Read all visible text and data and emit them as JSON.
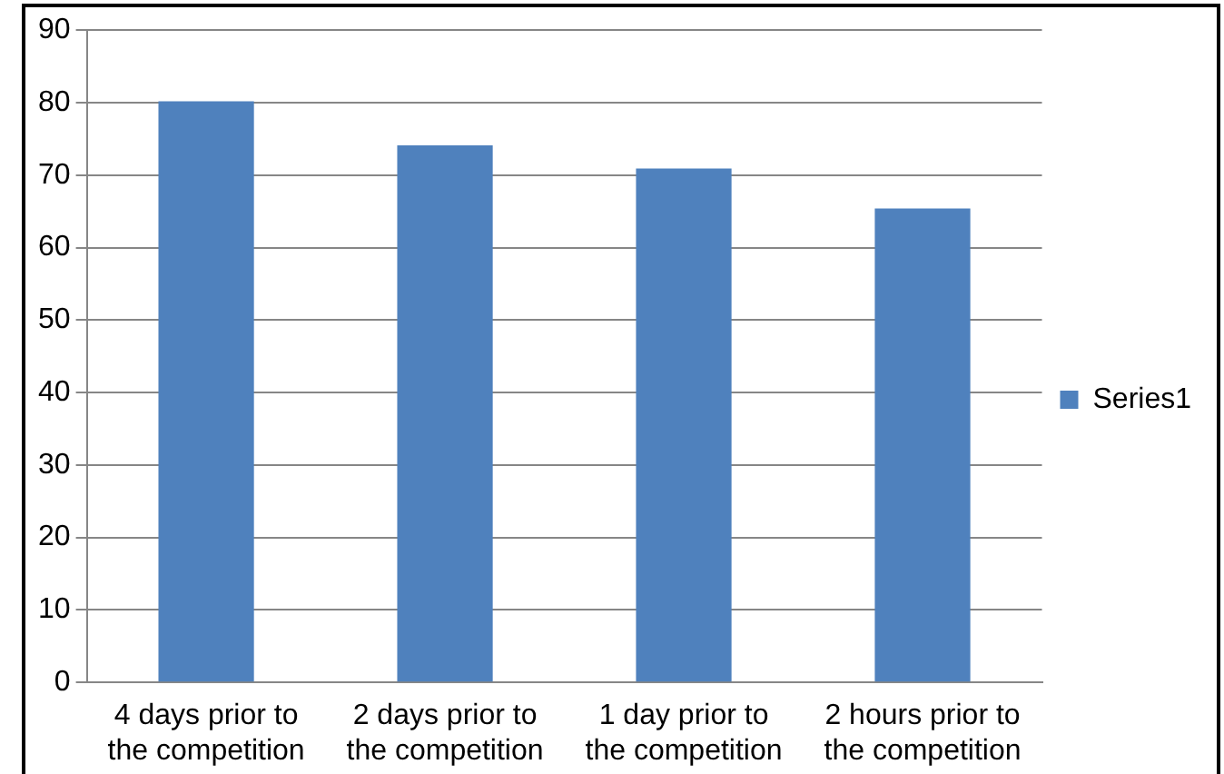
{
  "chart_data": {
    "type": "bar",
    "categories": [
      "4 days prior to the competition",
      "2 days prior to the competition",
      "1 day prior to the competition",
      "2 hours prior to the competition"
    ],
    "series": [
      {
        "name": "Series1",
        "color": "#4f81bd",
        "values": [
          80.2,
          74.1,
          70.9,
          65.4
        ]
      }
    ],
    "ylim": [
      0,
      90
    ],
    "yticks": [
      0,
      10,
      20,
      30,
      40,
      50,
      60,
      70,
      80,
      90
    ],
    "grid": "y",
    "legend": "right"
  }
}
